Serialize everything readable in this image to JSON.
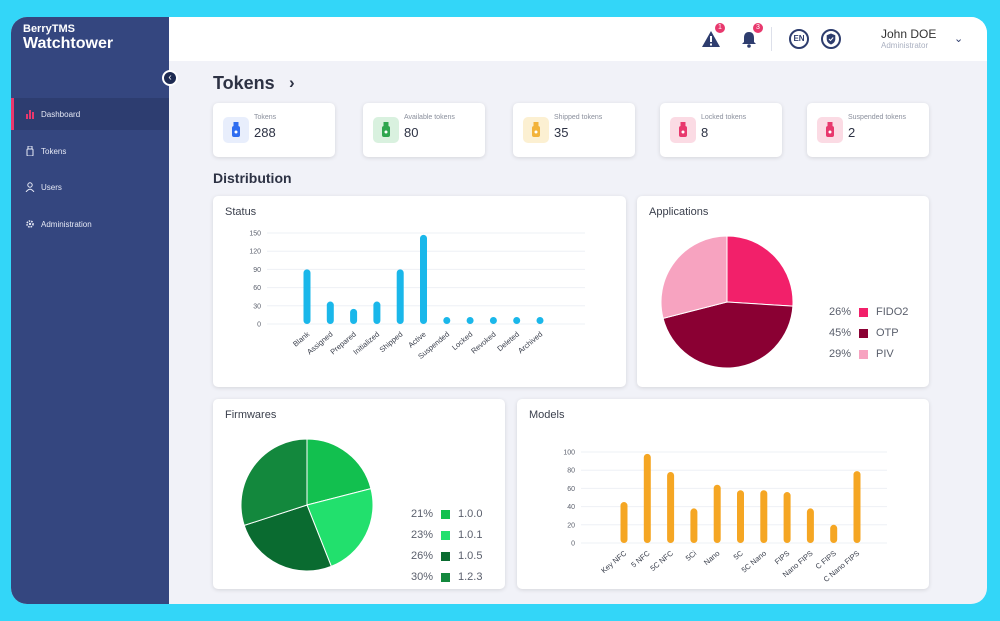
{
  "app": {
    "brand_line1": "BerryTMS",
    "brand_line2": "Watchtower"
  },
  "sidebar": {
    "items": [
      {
        "label": "Dashboard",
        "icon": "bar-chart-icon",
        "active": true
      },
      {
        "label": "Tokens",
        "icon": "usb-token-icon",
        "active": false
      },
      {
        "label": "Users",
        "icon": "user-icon",
        "active": false
      },
      {
        "label": "Administration",
        "icon": "gear-icon",
        "active": false
      }
    ]
  },
  "topbar": {
    "alert_badge": "1",
    "bell_badge": "3",
    "language": "EN",
    "user_name": "John DOE",
    "user_role": "Administrator"
  },
  "page": {
    "title": "Tokens",
    "section": "Distribution"
  },
  "stats": [
    {
      "label": "Tokens",
      "value": "288",
      "color": "#2f6df0",
      "bg": "#e8eefc"
    },
    {
      "label": "Available tokens",
      "value": "80",
      "color": "#2fa64f",
      "bg": "#d9f1df"
    },
    {
      "label": "Shipped tokens",
      "value": "35",
      "color": "#f2b33a",
      "bg": "#fcf0d2"
    },
    {
      "label": "Locked tokens",
      "value": "8",
      "color": "#e8386d",
      "bg": "#fbdbe4"
    },
    {
      "label": "Suspended tokens",
      "value": "2",
      "color": "#e8386d",
      "bg": "#fbdbe4"
    }
  ],
  "cards": {
    "status": "Status",
    "applications": "Applications",
    "firmwares": "Firmwares",
    "models": "Models"
  },
  "chart_data": [
    {
      "id": "status",
      "type": "bar",
      "title": "Status",
      "color": "#1ab7ea",
      "categories": [
        "Blank",
        "Assigned",
        "Prepared",
        "Initialized",
        "Shipped",
        "Active",
        "Suspended",
        "Locked",
        "Revoked",
        "Deleted",
        "Archived"
      ],
      "values": [
        90,
        37,
        25,
        37,
        90,
        147,
        5,
        10,
        2,
        1,
        1
      ],
      "yticks": [
        0,
        30,
        60,
        90,
        120,
        150
      ],
      "ylim": [
        0,
        150
      ]
    },
    {
      "id": "applications",
      "type": "pie",
      "title": "Applications",
      "slices": [
        {
          "label": "FIDO2",
          "pct": "26%",
          "value": 26,
          "color": "#f2206a"
        },
        {
          "label": "OTP",
          "pct": "45%",
          "value": 45,
          "color": "#8a0033"
        },
        {
          "label": "PIV",
          "pct": "29%",
          "value": 29,
          "color": "#f7a3c0"
        }
      ]
    },
    {
      "id": "firmwares",
      "type": "pie",
      "title": "Firmwares",
      "slices": [
        {
          "label": "1.0.0",
          "pct": "21%",
          "value": 21,
          "color": "#12c04f"
        },
        {
          "label": "1.0.1",
          "pct": "23%",
          "value": 23,
          "color": "#22e06d"
        },
        {
          "label": "1.0.5",
          "pct": "26%",
          "value": 26,
          "color": "#0a6b30"
        },
        {
          "label": "1.2.3",
          "pct": "30%",
          "value": 30,
          "color": "#13883d"
        }
      ]
    },
    {
      "id": "models",
      "type": "bar",
      "title": "Models",
      "color": "#f5a623",
      "categories": [
        "Key NFC",
        "5 NFC",
        "5C NFC",
        "5Ci",
        "Nano",
        "5C",
        "5C Nano",
        "FIPS",
        "Nano FIPS",
        "C FIPS",
        "C Nano FIPS"
      ],
      "values": [
        45,
        98,
        78,
        38,
        64,
        58,
        58,
        56,
        38,
        20,
        79
      ],
      "yticks": [
        0,
        20,
        40,
        60,
        80,
        100
      ],
      "ylim": [
        0,
        100
      ]
    }
  ]
}
